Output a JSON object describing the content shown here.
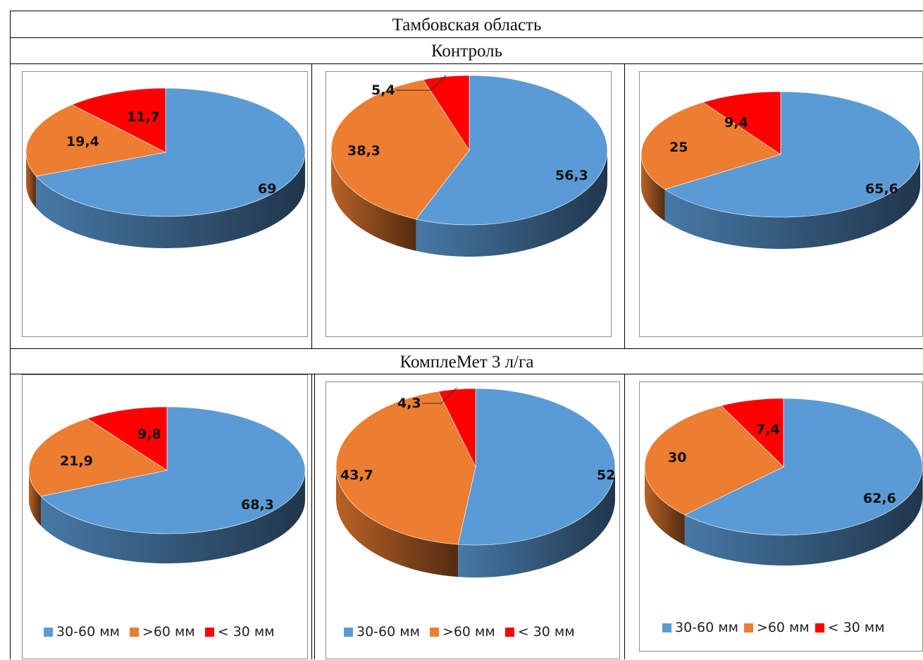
{
  "header": {
    "title": "Тамбовская область",
    "group1": "Контроль",
    "group2": "КомплеМет 3 л/га"
  },
  "legend_labels": [
    "30-60 мм",
    ">60 мм",
    "< 30 мм"
  ],
  "colors": {
    "a": "#5b9bd5",
    "b": "#ed7d31",
    "c": "#ff0000"
  },
  "chart_data": [
    {
      "type": "pie",
      "categories": [
        "30-60 мм",
        ">60 мм",
        "< 30 мм"
      ],
      "values": [
        69,
        19.4,
        11.7
      ],
      "labels": [
        "69",
        "19,4",
        "11,7"
      ]
    },
    {
      "type": "pie",
      "categories": [
        "30-60 мм",
        ">60 мм",
        "< 30 мм"
      ],
      "values": [
        56.3,
        38.3,
        5.4
      ],
      "labels": [
        "56,3",
        "38,3",
        "5,4"
      ]
    },
    {
      "type": "pie",
      "categories": [
        "30-60 мм",
        ">60 мм",
        "< 30 мм"
      ],
      "values": [
        65.6,
        25,
        9.4
      ],
      "labels": [
        "65,6",
        "25",
        "9,4"
      ]
    },
    {
      "type": "pie",
      "categories": [
        "30-60 мм",
        ">60 мм",
        "< 30 мм"
      ],
      "values": [
        68.3,
        21.9,
        9.8
      ],
      "labels": [
        "68,3",
        "21,9",
        "9,8"
      ]
    },
    {
      "type": "pie",
      "categories": [
        "30-60 мм",
        ">60 мм",
        "< 30 мм"
      ],
      "values": [
        52,
        43.7,
        4.3
      ],
      "labels": [
        "52",
        "43,7",
        "4,3"
      ]
    },
    {
      "type": "pie",
      "categories": [
        "30-60 мм",
        ">60 мм",
        "< 30 мм"
      ],
      "values": [
        62.6,
        30,
        7.4
      ],
      "labels": [
        "62,6",
        "30",
        "7,4"
      ]
    }
  ]
}
